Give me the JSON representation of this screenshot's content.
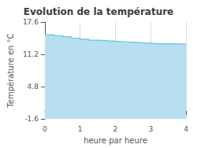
{
  "chart_data": {
    "type": "step_area",
    "title": "Evolution de la température",
    "xlabel": "heure par heure",
    "ylabel": "Température en °C",
    "x": [
      0,
      0.25,
      0.5,
      0.75,
      1.0,
      1.25,
      1.5,
      1.75,
      2.0,
      2.25,
      2.5,
      2.75,
      3.0,
      3.25,
      3.5,
      3.75,
      4.0
    ],
    "values": [
      15.1,
      14.9,
      14.7,
      14.4,
      14.2,
      14.0,
      13.9,
      13.8,
      13.7,
      13.6,
      13.5,
      13.4,
      13.3,
      13.3,
      13.3,
      13.2,
      13.2
    ],
    "color": "#60c8d8",
    "fill_color": "#b8dff0",
    "xlim": [
      0,
      4
    ],
    "xticks": [
      0,
      1,
      2,
      3,
      4
    ],
    "ylim": [
      -1.6,
      17.6
    ],
    "yticks": [
      -1.6,
      4.8,
      11.2,
      17.6
    ],
    "grid": "x"
  }
}
